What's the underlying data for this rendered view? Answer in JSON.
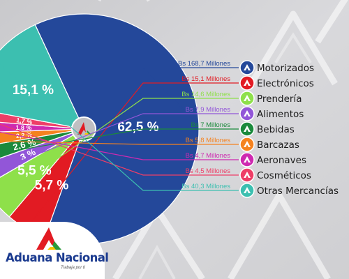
{
  "chart_data": {
    "type": "pie",
    "categories": [
      "Motorizados",
      "Electrónicos",
      "Prendería",
      "Alimentos",
      "Bebidas",
      "Barcazas",
      "Aeronaves",
      "Cosméticos",
      "Otras Mercancías"
    ],
    "values": [
      62.5,
      5.7,
      5.5,
      3,
      2.6,
      2.2,
      1.8,
      1.7,
      15.1
    ],
    "slice_labels": [
      "62,5 %",
      "5,7 %",
      "5,5 %",
      "3 %",
      "2,6 %",
      "2,2 %",
      "1,8 %",
      "1,7 %",
      "15,1 %"
    ],
    "amounts": [
      "Bs 168,7 Millones",
      "Bs 15,1 Millones",
      "Bs 14,6 Millones",
      "Bs 7,9 Millones",
      "Bs 7 Millones",
      "Bs 5,8 Millones",
      "Bs 4,7 Millones",
      "Bs 4,5 Millones",
      "Bs 40,3 Millones"
    ],
    "colors": [
      "#24489a",
      "#e21b23",
      "#8ee04a",
      "#9256d8",
      "#1b8a3c",
      "#f5821f",
      "#ce2ab0",
      "#ee3e67",
      "#3cbfb0"
    ],
    "legend_placement": "right"
  },
  "brand": {
    "name": "Aduana Nacional",
    "tagline": "Trabaja por ti"
  }
}
